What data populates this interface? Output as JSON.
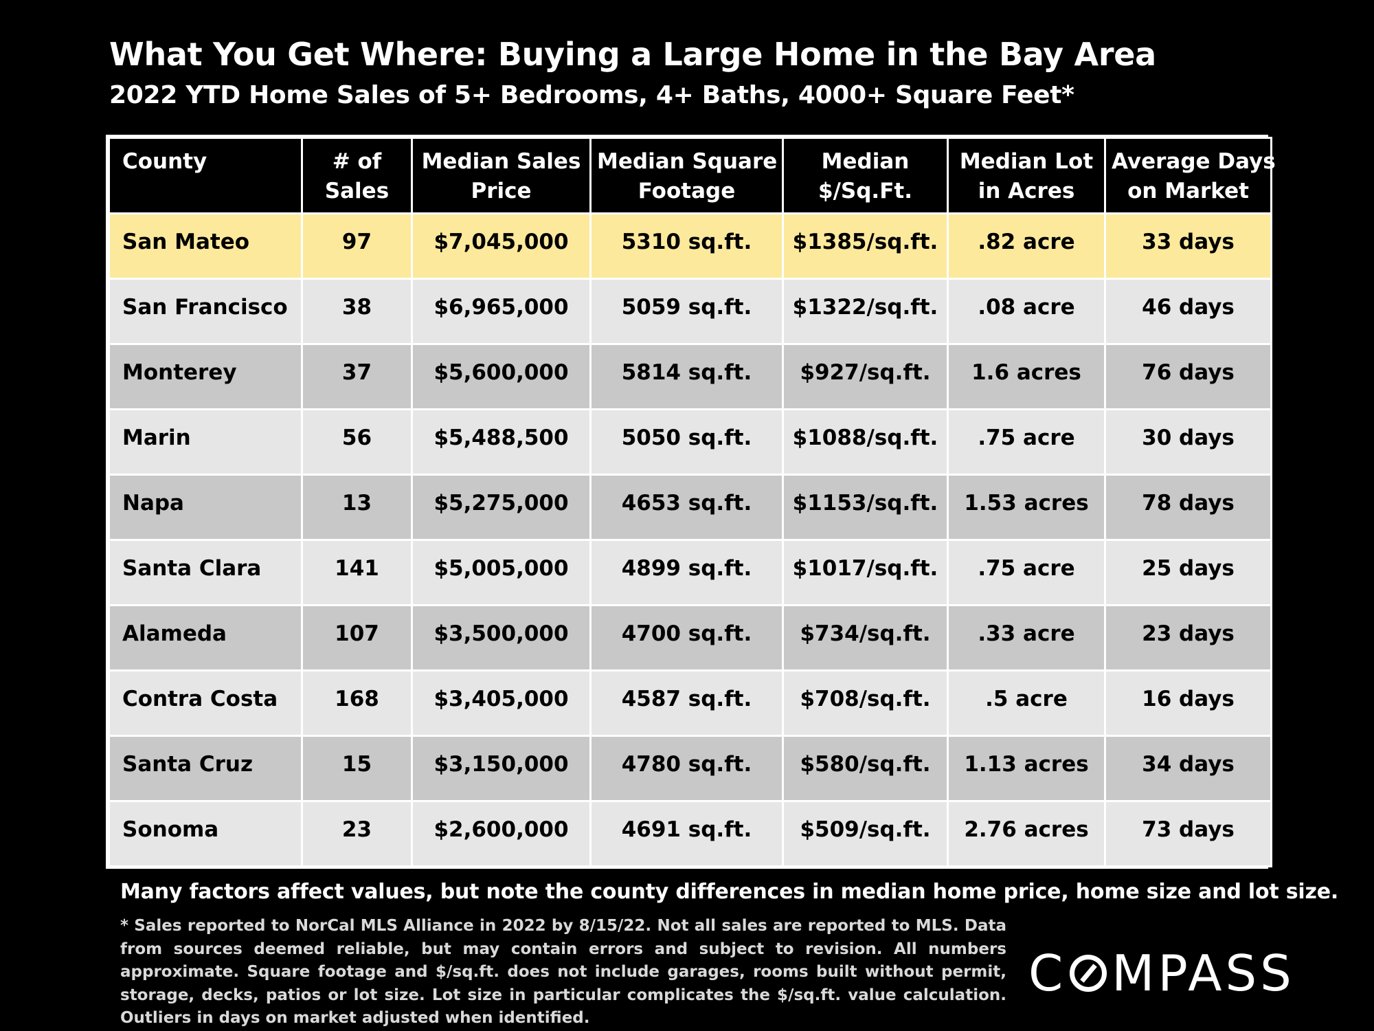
{
  "title": "What You Get Where: Buying a Large Home in the Bay Area",
  "subtitle": "2022 YTD Home Sales of 5+ Bedrooms, 4+ Baths, 4000+ Square Feet*",
  "columns": [
    {
      "line1": "County",
      "line2": ""
    },
    {
      "line1": "# of",
      "line2": "Sales"
    },
    {
      "line1": "Median Sales",
      "line2": "Price"
    },
    {
      "line1": "Median Square",
      "line2": "Footage"
    },
    {
      "line1": "Median",
      "line2": "$/Sq.Ft."
    },
    {
      "line1": "Median Lot",
      "line2": "in Acres"
    },
    {
      "line1": "Average Days",
      "line2": "on Market"
    }
  ],
  "rows": [
    {
      "county": "San Mateo",
      "sales": "97",
      "price": "$7,045,000",
      "sqft": "5310 sq.ft.",
      "ppsf": "$1385/sq.ft.",
      "lot": ".82 acre",
      "days": "33 days",
      "highlight": true
    },
    {
      "county": "San Francisco",
      "sales": "38",
      "price": "$6,965,000",
      "sqft": "5059 sq.ft.",
      "ppsf": "$1322/sq.ft.",
      "lot": ".08 acre",
      "days": "46 days"
    },
    {
      "county": "Monterey",
      "sales": "37",
      "price": "$5,600,000",
      "sqft": "5814 sq.ft.",
      "ppsf": "$927/sq.ft.",
      "lot": "1.6 acres",
      "days": "76 days"
    },
    {
      "county": "Marin",
      "sales": "56",
      "price": "$5,488,500",
      "sqft": "5050 sq.ft.",
      "ppsf": "$1088/sq.ft.",
      "lot": ".75 acre",
      "days": "30 days"
    },
    {
      "county": "Napa",
      "sales": "13",
      "price": "$5,275,000",
      "sqft": "4653 sq.ft.",
      "ppsf": "$1153/sq.ft.",
      "lot": "1.53 acres",
      "days": "78 days"
    },
    {
      "county": "Santa Clara",
      "sales": "141",
      "price": "$5,005,000",
      "sqft": "4899 sq.ft.",
      "ppsf": "$1017/sq.ft.",
      "lot": ".75 acre",
      "days": "25 days"
    },
    {
      "county": "Alameda",
      "sales": "107",
      "price": "$3,500,000",
      "sqft": "4700 sq.ft.",
      "ppsf": "$734/sq.ft.",
      "lot": ".33 acre",
      "days": "23 days"
    },
    {
      "county": "Contra Costa",
      "sales": "168",
      "price": "$3,405,000",
      "sqft": "4587 sq.ft.",
      "ppsf": "$708/sq.ft.",
      "lot": ".5 acre",
      "days": "16 days"
    },
    {
      "county": "Santa Cruz",
      "sales": "15",
      "price": "$3,150,000",
      "sqft": "4780 sq.ft.",
      "ppsf": "$580/sq.ft.",
      "lot": "1.13 acres",
      "days": "34 days"
    },
    {
      "county": "Sonoma",
      "sales": "23",
      "price": "$2,600,000",
      "sqft": "4691 sq.ft.",
      "ppsf": "$509/sq.ft.",
      "lot": "2.76 acres",
      "days": "73 days"
    }
  ],
  "note": "Many factors affect values, but note the county differences in median home price, home size and lot size.",
  "footnote": "* Sales reported to NorCal MLS Alliance in 2022 by 8/15/22. Not all sales are reported to MLS. Data from sources deemed reliable, but may contain errors and subject to revision. All numbers approximate. Square footage and $/sq.ft. does not include garages, rooms built without permit, storage, decks, patios or lot size. Lot size in particular complicates the $/sq.ft. value calculation. Outliers in days on market adjusted when identified.",
  "logo": {
    "before": "C",
    "after": "MPASS",
    "text": "COMPASS"
  },
  "colors": {
    "background": "#000000",
    "highlight_row": "#fde99c",
    "row_light": "#e6e6e6",
    "row_dark": "#c8c8c8"
  }
}
